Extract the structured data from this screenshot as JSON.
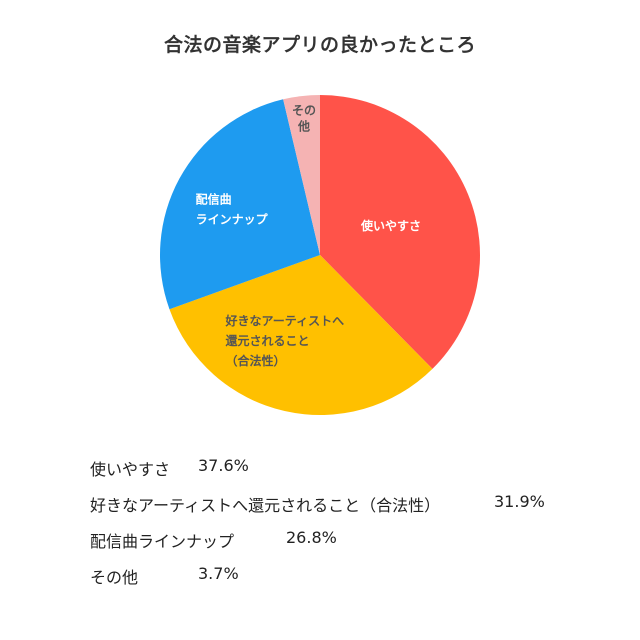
{
  "chart_data": {
    "type": "pie",
    "title": "合法の音楽アプリの良かったところ",
    "slices": [
      {
        "label": "使いやすさ",
        "chart_label_lines": [
          "使いやすさ"
        ],
        "value": 37.6,
        "value_text": "37.6%",
        "color": "#FF5349"
      },
      {
        "label": "好きなアーティストへ還元されること（合法性）",
        "chart_label_lines": [
          "好きなアーティストへ",
          "還元されること",
          "（合法性）"
        ],
        "value": 31.9,
        "value_text": "31.9%",
        "color": "#FFC000"
      },
      {
        "label": "配信曲ラインナップ",
        "chart_label_lines": [
          "配信曲",
          "ラインナップ"
        ],
        "value": 26.8,
        "value_text": "26.8%",
        "color": "#1E9BF0"
      },
      {
        "label": "その他",
        "chart_label_lines": [
          "その",
          "他"
        ],
        "value": 3.7,
        "value_text": "3.7%",
        "color": "#F5B3B3"
      }
    ],
    "start_angle": "top (12 o'clock)",
    "direction": "clockwise"
  }
}
